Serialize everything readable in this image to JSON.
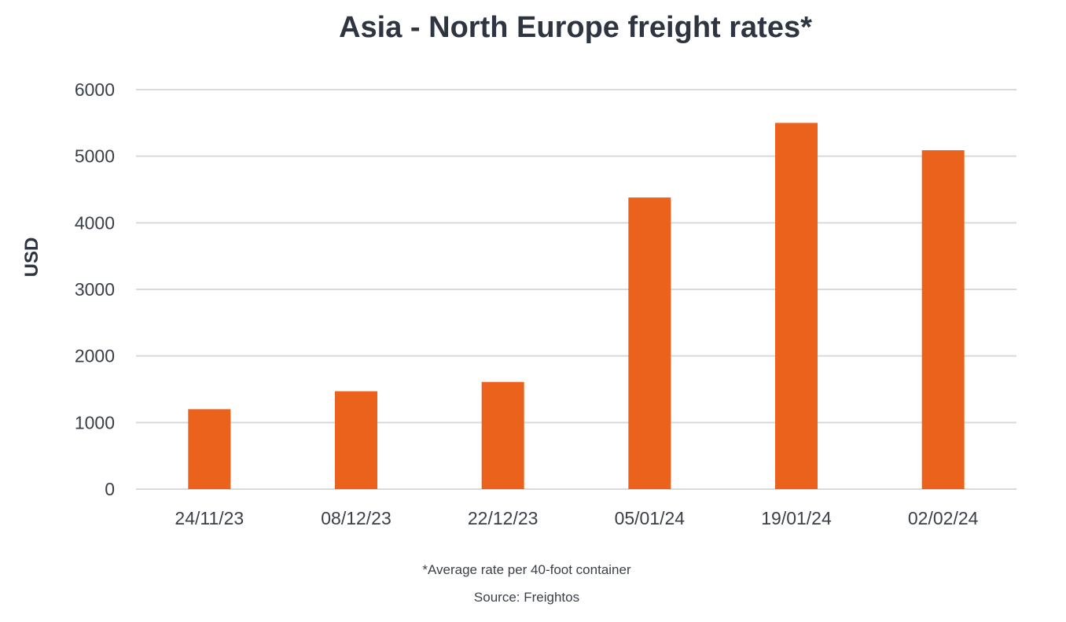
{
  "chart_data": {
    "type": "bar",
    "title": "Asia - North Europe freight rates*",
    "xlabel": "",
    "ylabel": "USD",
    "categories": [
      "24/11/23",
      "08/12/23",
      "22/12/23",
      "05/01/24",
      "19/01/24",
      "02/02/24"
    ],
    "values": [
      1200,
      1470,
      1610,
      4380,
      5500,
      5090
    ],
    "ylim": [
      0,
      6000
    ],
    "yticks": [
      0,
      1000,
      2000,
      3000,
      4000,
      5000,
      6000
    ],
    "grid": true,
    "legend": "none",
    "bar_color": "#eb621d",
    "footnote": "*Average rate per 40-foot container",
    "source": "Source: Freightos"
  }
}
